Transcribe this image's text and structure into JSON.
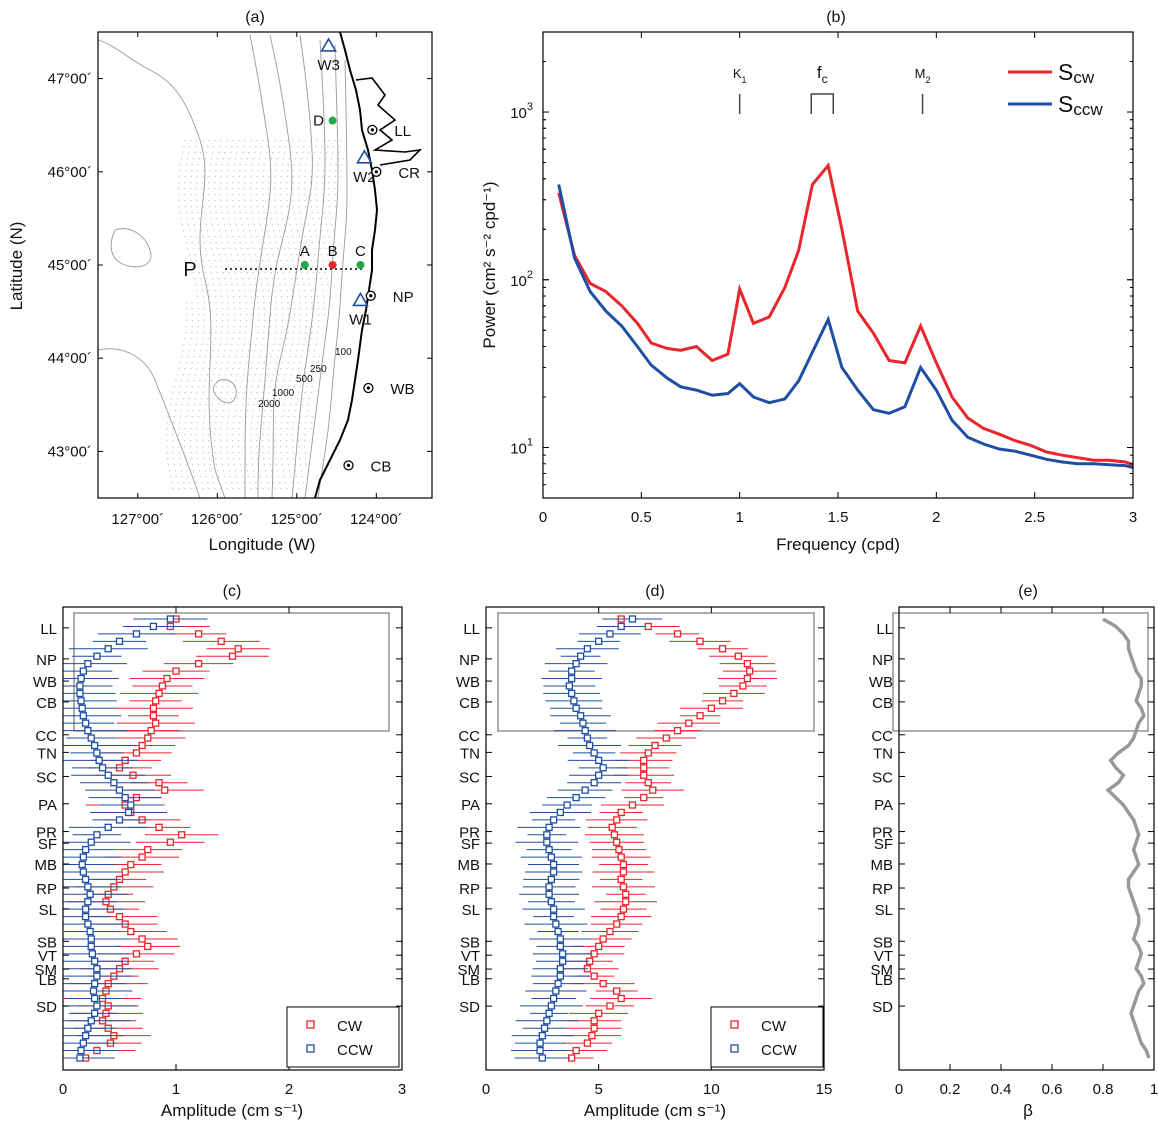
{
  "panels": {
    "a": {
      "label": "(a)",
      "xlabel": "Longitude (W)",
      "ylabel": "Latitude (N)",
      "xticks": [
        "127°00´",
        "126°00´",
        "125°00´",
        "124°00´"
      ],
      "yticks": [
        "47°00´",
        "46°00´",
        "45°00´",
        "44°00´",
        "43°00´"
      ],
      "stations": [
        "A",
        "B",
        "C",
        "D"
      ],
      "buoys": [
        "W1",
        "W2",
        "W3"
      ],
      "coast_labels": [
        "LL",
        "CR",
        "NP",
        "WB",
        "CB"
      ],
      "line_label": "P",
      "contour_labels": [
        "100",
        "250",
        "500",
        "1000",
        "2000"
      ]
    },
    "b": {
      "label": "(b)",
      "xlabel": "Frequency (cpd)",
      "ylabel": "Power (cm² s⁻² cpd⁻¹)",
      "freq_marks": [
        "K1",
        "fc",
        "M2"
      ],
      "legend": [
        "Scw",
        "Sccw"
      ]
    },
    "c": {
      "label": "(c)",
      "xlabel": "Amplitude (cm s⁻¹)",
      "legend": [
        "CW",
        "CCW"
      ]
    },
    "d": {
      "label": "(d)",
      "xlabel": "Amplitude (cm s⁻¹)",
      "legend": [
        "CW",
        "CCW"
      ]
    },
    "e": {
      "label": "(e)",
      "xlabel": "β"
    }
  },
  "site_labels": [
    "LL",
    "NP",
    "WB",
    "CB",
    "CC",
    "TN",
    "SC",
    "PA",
    "PR",
    "SF",
    "MB",
    "RP",
    "SL",
    "SB",
    "VT",
    "SM",
    "LB",
    "SD"
  ],
  "colors": {
    "cw": "#e8262b",
    "ccw": "#1f4fa2",
    "beta": "#999999"
  },
  "chart_data": [
    {
      "panel": "a",
      "type": "map",
      "xlim": [
        -127.5,
        -123.3
      ],
      "ylim": [
        42.5,
        47.5
      ],
      "stations": [
        {
          "name": "A",
          "lon": -124.9,
          "lat": 45.0,
          "color": "green"
        },
        {
          "name": "B",
          "lon": -124.55,
          "lat": 45.0,
          "color": "red"
        },
        {
          "name": "C",
          "lon": -124.2,
          "lat": 45.0,
          "color": "green"
        },
        {
          "name": "D",
          "lon": -124.55,
          "lat": 46.55,
          "color": "green"
        }
      ],
      "buoys": [
        {
          "name": "W1",
          "lon": -124.2,
          "lat": 44.62
        },
        {
          "name": "W2",
          "lon": -124.15,
          "lat": 46.15
        },
        {
          "name": "W3",
          "lon": -124.6,
          "lat": 47.35
        }
      ],
      "coast_sites": [
        {
          "name": "LL",
          "lon": -124.05,
          "lat": 46.45
        },
        {
          "name": "CR",
          "lon": -124.0,
          "lat": 46.0
        },
        {
          "name": "NP",
          "lon": -124.07,
          "lat": 44.67
        },
        {
          "name": "WB",
          "lon": -124.1,
          "lat": 43.68
        },
        {
          "name": "CB",
          "lon": -124.35,
          "lat": 42.85
        }
      ]
    },
    {
      "panel": "b",
      "type": "line",
      "yscale": "log",
      "xlim": [
        0,
        3
      ],
      "ylim": [
        5,
        3000
      ],
      "xticks": [
        0,
        0.5,
        1,
        1.5,
        2,
        2.5,
        3
      ],
      "yticks": [
        10,
        100,
        1000
      ],
      "freq_marks": [
        {
          "name": "K1",
          "x": 1.0
        },
        {
          "name": "fc",
          "x": 1.42
        },
        {
          "name": "M2",
          "x": 1.93
        }
      ],
      "x": [
        0.08,
        0.16,
        0.24,
        0.32,
        0.4,
        0.48,
        0.55,
        0.63,
        0.7,
        0.78,
        0.86,
        0.94,
        1.0,
        1.07,
        1.15,
        1.23,
        1.3,
        1.37,
        1.45,
        1.52,
        1.6,
        1.68,
        1.76,
        1.84,
        1.92,
        2.0,
        2.08,
        2.16,
        2.24,
        2.32,
        2.4,
        2.48,
        2.56,
        2.64,
        2.72,
        2.8,
        2.88,
        2.96,
        3.0
      ],
      "series": [
        {
          "name": "Scw",
          "values": [
            330,
            140,
            95,
            85,
            70,
            55,
            42,
            39,
            38,
            40,
            33,
            36,
            88,
            55,
            60,
            90,
            150,
            370,
            480,
            200,
            65,
            48,
            33,
            32,
            53,
            32,
            20,
            15,
            13,
            12,
            11,
            10.3,
            9.4,
            9,
            8.7,
            8.4,
            8.4,
            8.2,
            7.9
          ]
        },
        {
          "name": "Sccw",
          "values": [
            370,
            135,
            85,
            65,
            53,
            40,
            31,
            26,
            23,
            22,
            20.5,
            21,
            24,
            20,
            18.5,
            19.5,
            25,
            37,
            58,
            30,
            22,
            16.8,
            16,
            17.5,
            30,
            22,
            14.5,
            11.5,
            10.5,
            9.8,
            9.5,
            9,
            8.5,
            8.2,
            8,
            8,
            7.9,
            7.8,
            7.6
          ]
        }
      ]
    },
    {
      "panel": "c",
      "type": "scatter",
      "xlim": [
        0,
        3
      ],
      "xticks": [
        0,
        1,
        2,
        3
      ],
      "y_index": [
        0,
        1,
        2,
        3,
        4,
        5,
        6,
        7,
        8,
        9,
        10,
        11,
        12,
        13,
        14,
        15,
        16,
        17,
        18,
        19,
        20,
        21,
        22,
        23,
        24,
        25,
        26,
        27,
        28,
        29,
        30,
        31,
        32,
        33,
        34,
        35,
        36,
        37,
        38,
        39,
        40,
        41,
        42,
        43,
        44,
        45,
        46,
        47,
        48,
        49,
        50,
        51,
        52,
        53,
        54,
        55,
        56,
        57,
        58,
        59
      ],
      "series": [
        {
          "name": "CW",
          "values": [
            1.0,
            0.95,
            1.2,
            1.4,
            1.55,
            1.5,
            1.2,
            1.0,
            0.92,
            0.88,
            0.85,
            0.82,
            0.8,
            0.8,
            0.82,
            0.78,
            0.75,
            0.7,
            0.65,
            0.55,
            0.5,
            0.62,
            0.85,
            0.9,
            0.65,
            0.55,
            0.6,
            0.7,
            0.85,
            1.05,
            0.95,
            0.75,
            0.7,
            0.6,
            0.55,
            0.5,
            0.45,
            0.4,
            0.38,
            0.42,
            0.5,
            0.55,
            0.6,
            0.7,
            0.75,
            0.65,
            0.55,
            0.5,
            0.45,
            0.4,
            0.38,
            0.35,
            0.4,
            0.38,
            0.35,
            0.4,
            0.45,
            0.42,
            0.3,
            0.2
          ]
        },
        {
          "name": "CCW",
          "values": [
            0.95,
            0.8,
            0.65,
            0.5,
            0.4,
            0.3,
            0.22,
            0.18,
            0.16,
            0.15,
            0.15,
            0.16,
            0.17,
            0.18,
            0.2,
            0.22,
            0.25,
            0.28,
            0.3,
            0.32,
            0.35,
            0.4,
            0.45,
            0.5,
            0.55,
            0.6,
            0.58,
            0.5,
            0.4,
            0.3,
            0.25,
            0.2,
            0.18,
            0.17,
            0.18,
            0.2,
            0.22,
            0.24,
            0.22,
            0.2,
            0.2,
            0.22,
            0.24,
            0.25,
            0.25,
            0.26,
            0.28,
            0.3,
            0.3,
            0.28,
            0.27,
            0.28,
            0.3,
            0.28,
            0.25,
            0.22,
            0.2,
            0.18,
            0.16,
            0.15
          ]
        }
      ]
    },
    {
      "panel": "d",
      "type": "scatter",
      "xlim": [
        0,
        15
      ],
      "xticks": [
        0,
        5,
        10,
        15
      ],
      "y_index": [
        0,
        1,
        2,
        3,
        4,
        5,
        6,
        7,
        8,
        9,
        10,
        11,
        12,
        13,
        14,
        15,
        16,
        17,
        18,
        19,
        20,
        21,
        22,
        23,
        24,
        25,
        26,
        27,
        28,
        29,
        30,
        31,
        32,
        33,
        34,
        35,
        36,
        37,
        38,
        39,
        40,
        41,
        42,
        43,
        44,
        45,
        46,
        47,
        48,
        49,
        50,
        51,
        52,
        53,
        54,
        55,
        56,
        57,
        58,
        59
      ],
      "series": [
        {
          "name": "CW",
          "values": [
            6.0,
            7.2,
            8.5,
            9.5,
            10.5,
            11.2,
            11.6,
            11.7,
            11.6,
            11.4,
            11.0,
            10.5,
            10.0,
            9.5,
            9.0,
            8.5,
            8.0,
            7.5,
            7.2,
            7.0,
            7.0,
            7.0,
            7.2,
            7.4,
            7.0,
            6.5,
            6.0,
            5.8,
            5.6,
            5.7,
            5.8,
            5.9,
            6.0,
            6.1,
            6.1,
            6.0,
            6.1,
            6.2,
            6.2,
            6.1,
            6.0,
            5.8,
            5.5,
            5.2,
            5.0,
            4.8,
            4.6,
            4.5,
            4.8,
            5.2,
            5.8,
            6.0,
            5.5,
            5.0,
            4.8,
            4.8,
            4.7,
            4.5,
            4.0,
            3.8
          ]
        },
        {
          "name": "CCW",
          "values": [
            6.5,
            6.0,
            5.5,
            5.0,
            4.5,
            4.2,
            4.0,
            3.8,
            3.8,
            3.7,
            3.8,
            3.9,
            4.0,
            4.2,
            4.3,
            4.4,
            4.5,
            4.6,
            4.8,
            5.0,
            5.2,
            5.0,
            4.8,
            4.4,
            4.0,
            3.6,
            3.3,
            3.0,
            2.8,
            2.7,
            2.7,
            2.8,
            2.9,
            3.0,
            3.0,
            2.9,
            2.8,
            2.8,
            2.9,
            3.0,
            3.0,
            3.1,
            3.2,
            3.3,
            3.3,
            3.4,
            3.4,
            3.3,
            3.3,
            3.2,
            3.1,
            3.0,
            2.9,
            2.8,
            2.7,
            2.6,
            2.5,
            2.4,
            2.4,
            2.5
          ]
        }
      ]
    },
    {
      "panel": "e",
      "type": "line",
      "xlim": [
        0,
        1
      ],
      "xticks": [
        0,
        0.2,
        0.4,
        0.6,
        0.8,
        1
      ],
      "y_index": [
        0,
        1,
        2,
        3,
        4,
        5,
        6,
        7,
        8,
        9,
        10,
        11,
        12,
        13,
        14,
        15,
        16,
        17,
        18,
        19,
        20,
        21,
        22,
        23,
        24,
        25,
        26,
        27,
        28,
        29,
        30,
        31,
        32,
        33,
        34,
        35,
        36,
        37,
        38,
        39,
        40,
        41,
        42,
        43,
        44,
        45,
        46,
        47,
        48,
        49,
        50,
        51,
        52,
        53,
        54,
        55,
        56,
        57,
        58,
        59
      ],
      "series": [
        {
          "name": "beta",
          "values": [
            0.8,
            0.85,
            0.88,
            0.9,
            0.9,
            0.91,
            0.92,
            0.93,
            0.95,
            0.95,
            0.94,
            0.93,
            0.95,
            0.96,
            0.94,
            0.93,
            0.92,
            0.9,
            0.86,
            0.83,
            0.85,
            0.88,
            0.86,
            0.82,
            0.85,
            0.88,
            0.9,
            0.92,
            0.93,
            0.94,
            0.93,
            0.92,
            0.93,
            0.94,
            0.92,
            0.9,
            0.9,
            0.91,
            0.92,
            0.93,
            0.94,
            0.94,
            0.93,
            0.92,
            0.94,
            0.95,
            0.94,
            0.93,
            0.95,
            0.96,
            0.94,
            0.93,
            0.92,
            0.91,
            0.92,
            0.93,
            0.94,
            0.95,
            0.97,
            0.98
          ]
        }
      ]
    }
  ]
}
